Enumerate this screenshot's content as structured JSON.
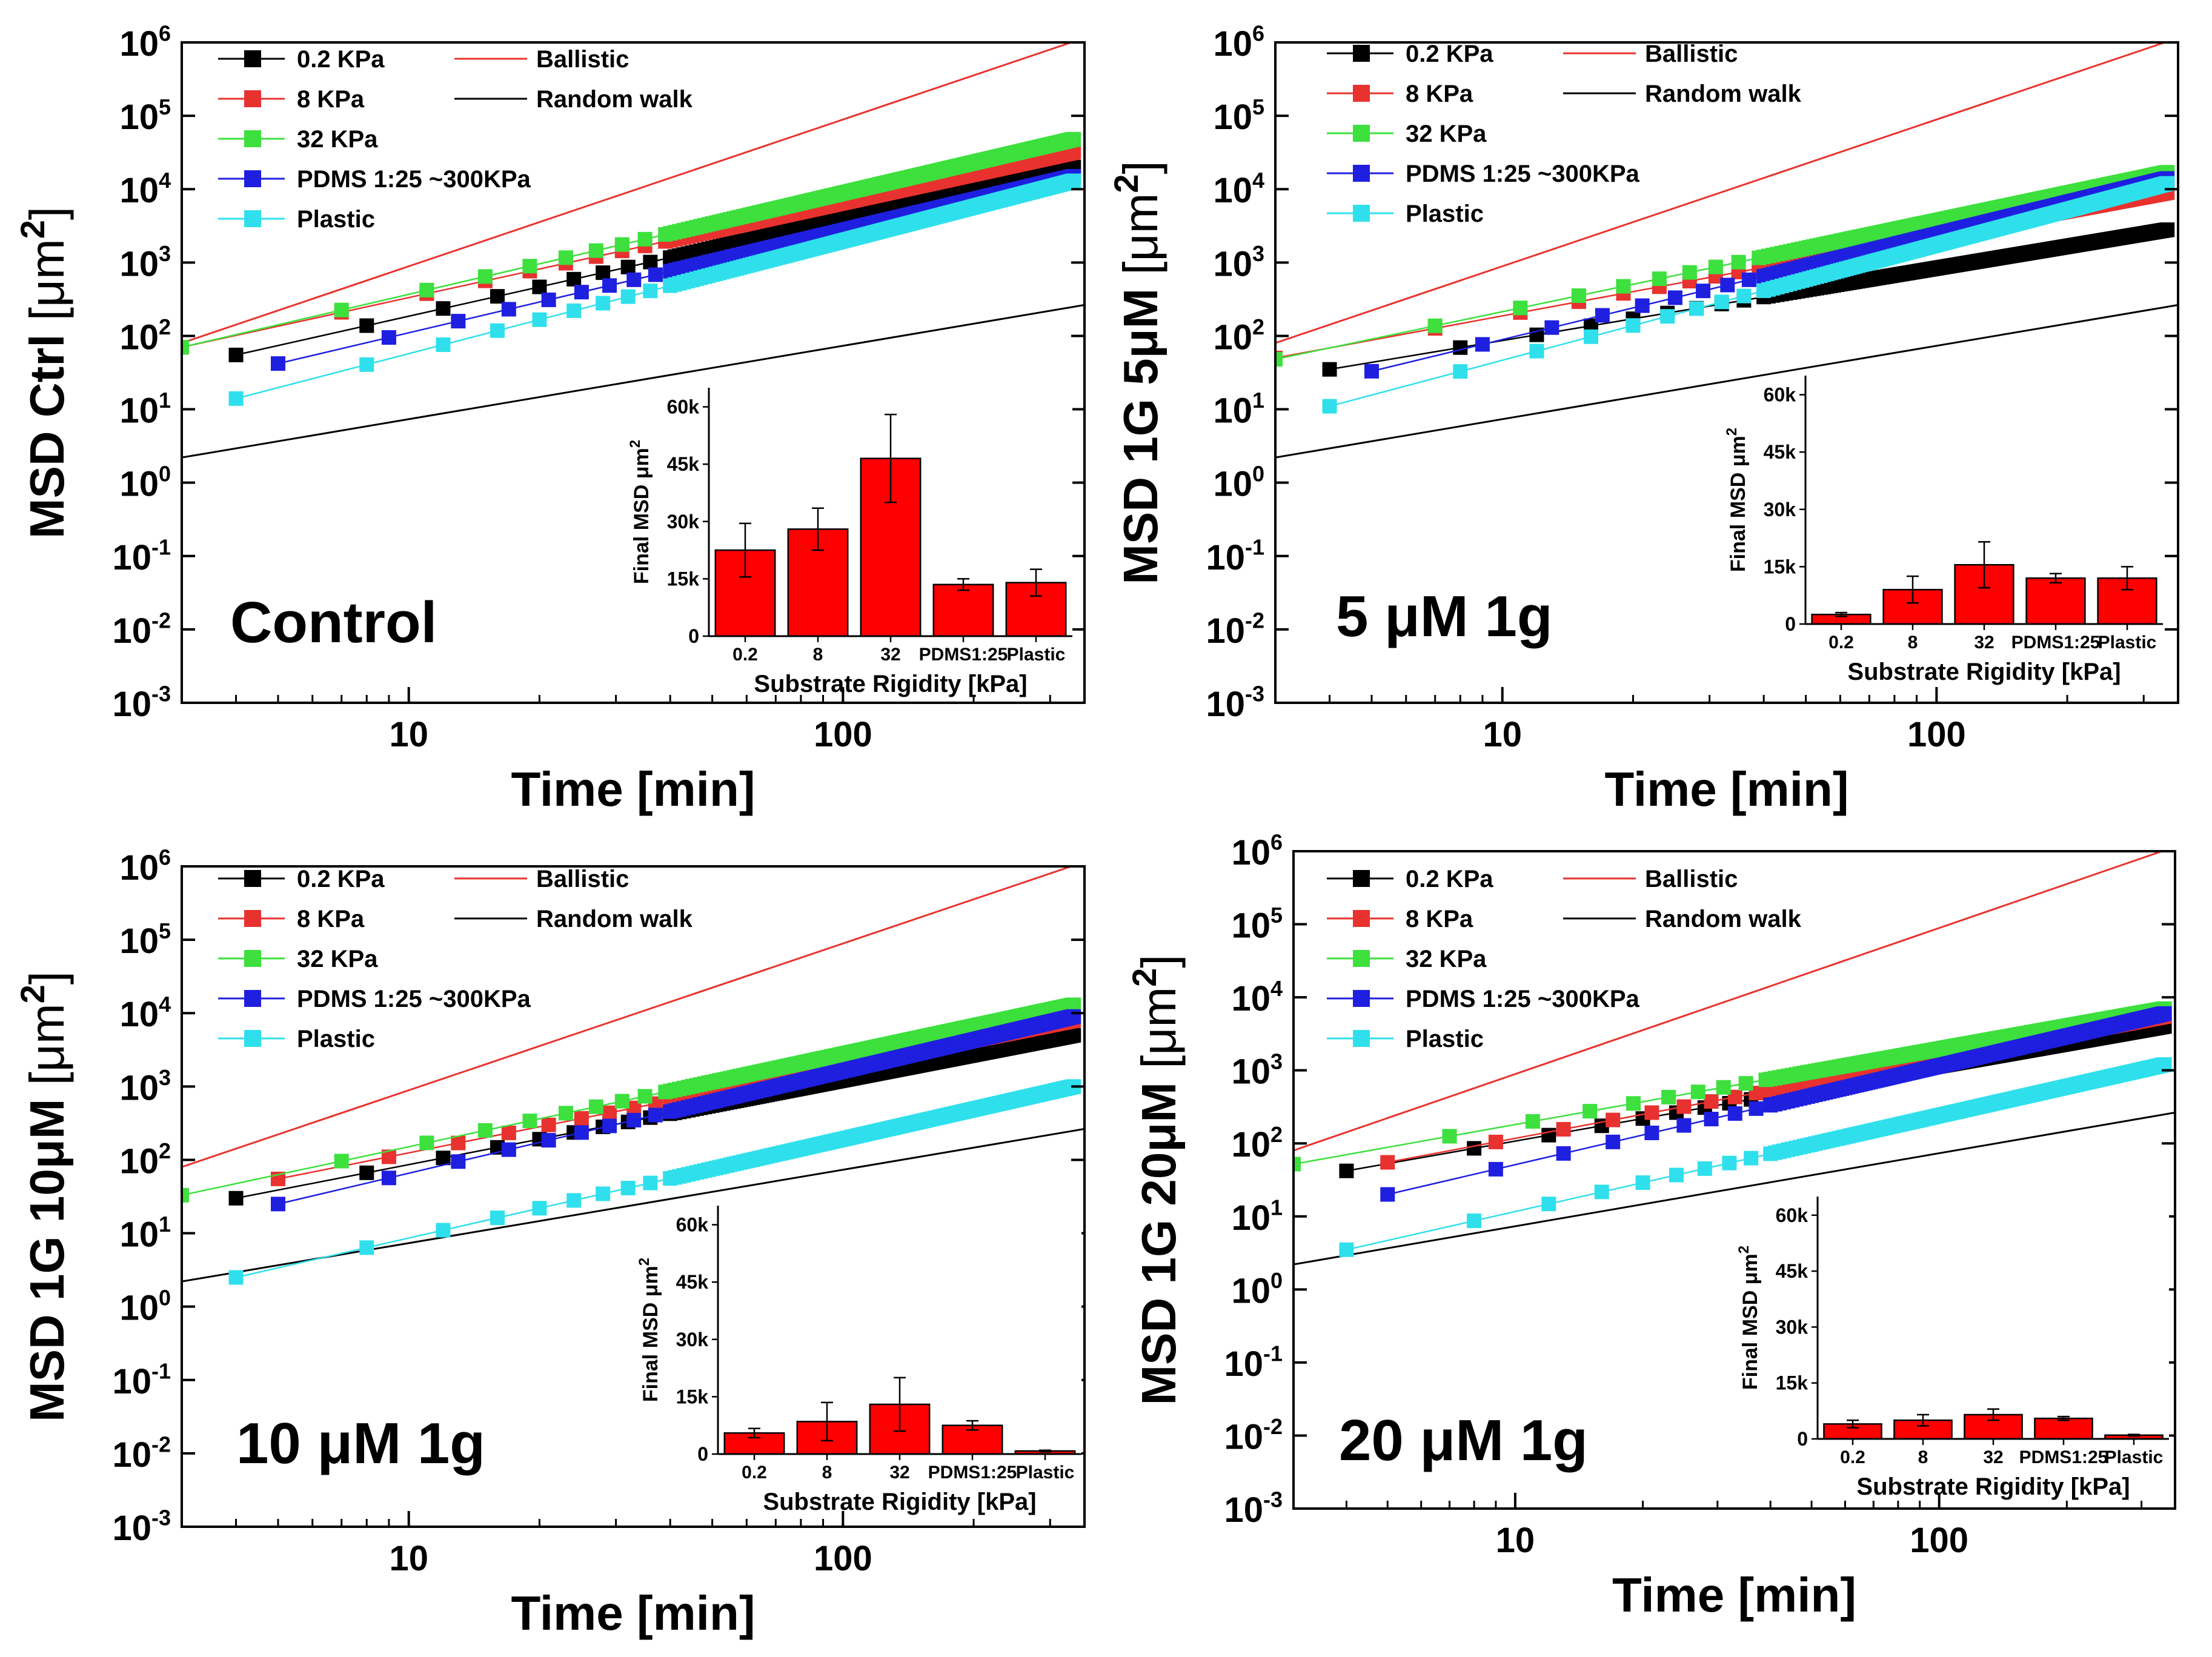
{
  "chart_data": [
    {
      "type": "scatter",
      "title": "",
      "panel_label": "Control",
      "xlabel": "Time [min]",
      "ylabel": "MSD Ctrl [μm²]",
      "ylabel_main": "MSD Ctrl ",
      "ylabel_unit": "[μm",
      "ylabel_sup": "2",
      "ylabel_close": "]",
      "xscale": "log",
      "yscale": "log",
      "xlim": [
        3,
        360
      ],
      "ylim": [
        0.001,
        1000000
      ],
      "x_ticks": [
        "10",
        "100"
      ],
      "y_ticks": [
        "10-3",
        "10-2",
        "10-1",
        "100",
        "101",
        "102",
        "103",
        "104",
        "105",
        "106"
      ],
      "legend": {
        "position": "top-left",
        "entries": [
          "0.2 KPa",
          "8 KPa",
          "32 KPa",
          "PDMS 1:25 ~300KPa",
          "Plastic",
          "Ballistic",
          "Random walk"
        ]
      },
      "reference_lines": [
        {
          "name": "Ballistic",
          "color": "#e8322f",
          "y_at_x3": 80,
          "slope": 2
        },
        {
          "name": "Random walk",
          "color": "#000000",
          "y_at_x3": 2.2,
          "slope": 1
        }
      ],
      "series": [
        {
          "name": "0.2 KPa",
          "color": "#000000",
          "x_start": 4,
          "y_start": 55,
          "x_end": 340,
          "y_end": 20000
        },
        {
          "name": "8 KPa",
          "color": "#e8322f",
          "x_start": 3,
          "y_start": 70,
          "x_end": 340,
          "y_end": 32000
        },
        {
          "name": "32 KPa",
          "color": "#3de03d",
          "x_start": 3,
          "y_start": 70,
          "x_end": 340,
          "y_end": 48000
        },
        {
          "name": "PDMS 1:25 ~300KPa",
          "color": "#1f1fe0",
          "x_start": 5,
          "y_start": 42,
          "x_end": 340,
          "y_end": 15000
        },
        {
          "name": "Plastic",
          "color": "#2fe0ec",
          "x_start": 4,
          "y_start": 14,
          "x_end": 340,
          "y_end": 13000
        }
      ],
      "inset": {
        "type": "bar",
        "categories": [
          "0.2",
          "8",
          "32",
          "PDMS1:25",
          "Plastic"
        ],
        "values": [
          22500,
          28000,
          46500,
          13500,
          14000
        ],
        "errors": [
          7000,
          5500,
          11500,
          1500,
          3500
        ],
        "ylim": [
          0,
          65000
        ],
        "y_ticks": [
          "0",
          "15k",
          "30k",
          "45k",
          "60k"
        ],
        "xlabel": "Substrate Rigidity [kPa]",
        "ylabel": "Final MSD  μm²",
        "ylabel_main": "Final MSD  μm",
        "ylabel_sup": "2",
        "bar_color": "#ff0000"
      }
    },
    {
      "type": "scatter",
      "title": "",
      "panel_label": "5 μM 1g",
      "xlabel": "Time [min]",
      "ylabel": "MSD 1G 5μM [μm²]",
      "ylabel_main": "MSD 1G 5μM ",
      "ylabel_unit": "[μm",
      "ylabel_sup": "2",
      "ylabel_close": "]",
      "xscale": "log",
      "yscale": "log",
      "xlim": [
        3,
        360
      ],
      "ylim": [
        0.001,
        1000000
      ],
      "x_ticks": [
        "10",
        "100"
      ],
      "y_ticks": [
        "10-3",
        "10-2",
        "10-1",
        "100",
        "101",
        "102",
        "103",
        "104",
        "105",
        "106"
      ],
      "legend": {
        "position": "top-left",
        "entries": [
          "0.2 KPa",
          "8 KPa",
          "32 KPa",
          "PDMS 1:25 ~300KPa",
          "Plastic",
          "Ballistic",
          "Random walk"
        ]
      },
      "reference_lines": [
        {
          "name": "Ballistic",
          "color": "#e8322f",
          "y_at_x3": 80,
          "slope": 2
        },
        {
          "name": "Random walk",
          "color": "#000000",
          "y_at_x3": 2.2,
          "slope": 1
        }
      ],
      "series": [
        {
          "name": "0.2 KPa",
          "color": "#000000",
          "x_start": 4,
          "y_start": 35,
          "x_end": 340,
          "y_end": 2800
        },
        {
          "name": "8 KPa",
          "color": "#e8322f",
          "x_start": 3,
          "y_start": 50,
          "x_end": 340,
          "y_end": 9000
        },
        {
          "name": "32 KPa",
          "color": "#3de03d",
          "x_start": 3,
          "y_start": 48,
          "x_end": 340,
          "y_end": 17000
        },
        {
          "name": "PDMS 1:25 ~300KPa",
          "color": "#1f1fe0",
          "x_start": 5,
          "y_start": 33,
          "x_end": 340,
          "y_end": 14000
        },
        {
          "name": "Plastic",
          "color": "#2fe0ec",
          "x_start": 4,
          "y_start": 11,
          "x_end": 340,
          "y_end": 12000
        }
      ],
      "inset": {
        "type": "bar",
        "categories": [
          "0.2",
          "8",
          "32",
          "PDMS1:25",
          "Plastic"
        ],
        "values": [
          2500,
          9000,
          15500,
          12000,
          12000
        ],
        "errors": [
          500,
          3500,
          6000,
          1200,
          3000
        ],
        "ylim": [
          0,
          65000
        ],
        "y_ticks": [
          "0",
          "15k",
          "30k",
          "45k",
          "60k"
        ],
        "xlabel": "Substrate Rigidity [kPa]",
        "ylabel": "Final MSD  μm²",
        "ylabel_main": "Final MSD  μm",
        "ylabel_sup": "2",
        "bar_color": "#ff0000"
      }
    },
    {
      "type": "scatter",
      "title": "",
      "panel_label": "10 μM 1g",
      "xlabel": "Time [min]",
      "ylabel": "MSD 1G 10μM [μm²]",
      "ylabel_main": "MSD 1G 10μM ",
      "ylabel_unit": "[μm",
      "ylabel_sup": "2",
      "ylabel_close": "]",
      "xscale": "log",
      "yscale": "log",
      "xlim": [
        3,
        360
      ],
      "ylim": [
        0.001,
        1000000
      ],
      "x_ticks": [
        "10",
        "100"
      ],
      "y_ticks": [
        "10-3",
        "10-2",
        "10-1",
        "100",
        "101",
        "102",
        "103",
        "104",
        "105",
        "106"
      ],
      "legend": {
        "position": "top-left",
        "entries": [
          "0.2 KPa",
          "8 KPa",
          "32 KPa",
          "PDMS 1:25 ~300KPa",
          "Plastic",
          "Ballistic",
          "Random walk"
        ]
      },
      "reference_lines": [
        {
          "name": "Ballistic",
          "color": "#e8322f",
          "y_at_x3": 80,
          "slope": 2
        },
        {
          "name": "Random walk",
          "color": "#000000",
          "y_at_x3": 2.2,
          "slope": 1
        }
      ],
      "series": [
        {
          "name": "0.2 KPa",
          "color": "#000000",
          "x_start": 4,
          "y_start": 30,
          "x_end": 340,
          "y_end": 5000
        },
        {
          "name": "8 KPa",
          "color": "#e8322f",
          "x_start": 5,
          "y_start": 55,
          "x_end": 340,
          "y_end": 8000
        },
        {
          "name": "32 KPa",
          "color": "#3de03d",
          "x_start": 3,
          "y_start": 33,
          "x_end": 340,
          "y_end": 13000
        },
        {
          "name": "PDMS 1:25 ~300KPa",
          "color": "#1f1fe0",
          "x_start": 5,
          "y_start": 25,
          "x_end": 340,
          "y_end": 9000
        },
        {
          "name": "Plastic",
          "color": "#2fe0ec",
          "x_start": 4,
          "y_start": 2.5,
          "x_end": 340,
          "y_end": 1000
        }
      ],
      "inset": {
        "type": "bar",
        "categories": [
          "0.2",
          "8",
          "32",
          "PDMS1:25",
          "Plastic"
        ],
        "values": [
          5500,
          8500,
          13000,
          7500,
          800
        ],
        "errors": [
          1200,
          5000,
          7000,
          1200,
          200
        ],
        "ylim": [
          0,
          65000
        ],
        "y_ticks": [
          "0",
          "15k",
          "30k",
          "45k",
          "60k"
        ],
        "xlabel": "Substrate Rigidity [kPa]",
        "ylabel": "Final MSD  μm²",
        "ylabel_main": "Final MSD  μm",
        "ylabel_sup": "2",
        "bar_color": "#ff0000"
      }
    },
    {
      "type": "scatter",
      "title": "",
      "panel_label": "20 μM 1g",
      "xlabel": "Time [min]",
      "ylabel": "MSD 1G 20μM [μm²]",
      "ylabel_main": "MSD 1G 20μM ",
      "ylabel_unit": "[μm",
      "ylabel_sup": "2",
      "ylabel_close": "]",
      "xscale": "log",
      "yscale": "log",
      "xlim": [
        3,
        360
      ],
      "ylim": [
        0.001,
        1000000
      ],
      "x_ticks": [
        "10",
        "100"
      ],
      "y_ticks": [
        "10-3",
        "10-2",
        "10-1",
        "100",
        "101",
        "102",
        "103",
        "104",
        "105",
        "106"
      ],
      "legend": {
        "position": "top-left",
        "entries": [
          "0.2 KPa",
          "8 KPa",
          "32 KPa",
          "PDMS 1:25 ~300KPa",
          "Plastic",
          "Ballistic",
          "Random walk"
        ]
      },
      "reference_lines": [
        {
          "name": "Ballistic",
          "color": "#e8322f",
          "y_at_x3": 80,
          "slope": 2
        },
        {
          "name": "Random walk",
          "color": "#000000",
          "y_at_x3": 2.2,
          "slope": 1
        }
      ],
      "series": [
        {
          "name": "0.2 KPa",
          "color": "#000000",
          "x_start": 4,
          "y_start": 42,
          "x_end": 340,
          "y_end": 4000
        },
        {
          "name": "8 KPa",
          "color": "#e8322f",
          "x_start": 5,
          "y_start": 55,
          "x_end": 340,
          "y_end": 5500
        },
        {
          "name": "32 KPa",
          "color": "#3de03d",
          "x_start": 3,
          "y_start": 52,
          "x_end": 340,
          "y_end": 7000
        },
        {
          "name": "PDMS 1:25 ~300KPa",
          "color": "#1f1fe0",
          "x_start": 5,
          "y_start": 20,
          "x_end": 340,
          "y_end": 6000
        },
        {
          "name": "Plastic",
          "color": "#2fe0ec",
          "x_start": 4,
          "y_start": 3.5,
          "x_end": 340,
          "y_end": 1200
        }
      ],
      "inset": {
        "type": "bar",
        "categories": [
          "0.2",
          "8",
          "32",
          "PDMS1:25",
          "Plastic"
        ],
        "values": [
          4000,
          5000,
          6500,
          5500,
          1000
        ],
        "errors": [
          1000,
          1500,
          1500,
          500,
          200
        ],
        "ylim": [
          0,
          65000
        ],
        "y_ticks": [
          "0",
          "15k",
          "30k",
          "45k",
          "60k"
        ],
        "xlabel": "Substrate Rigidity [kPa]",
        "ylabel": "Final MSD  μm²",
        "ylabel_main": "Final MSD  μm",
        "ylabel_sup": "2",
        "bar_color": "#ff0000"
      }
    }
  ]
}
